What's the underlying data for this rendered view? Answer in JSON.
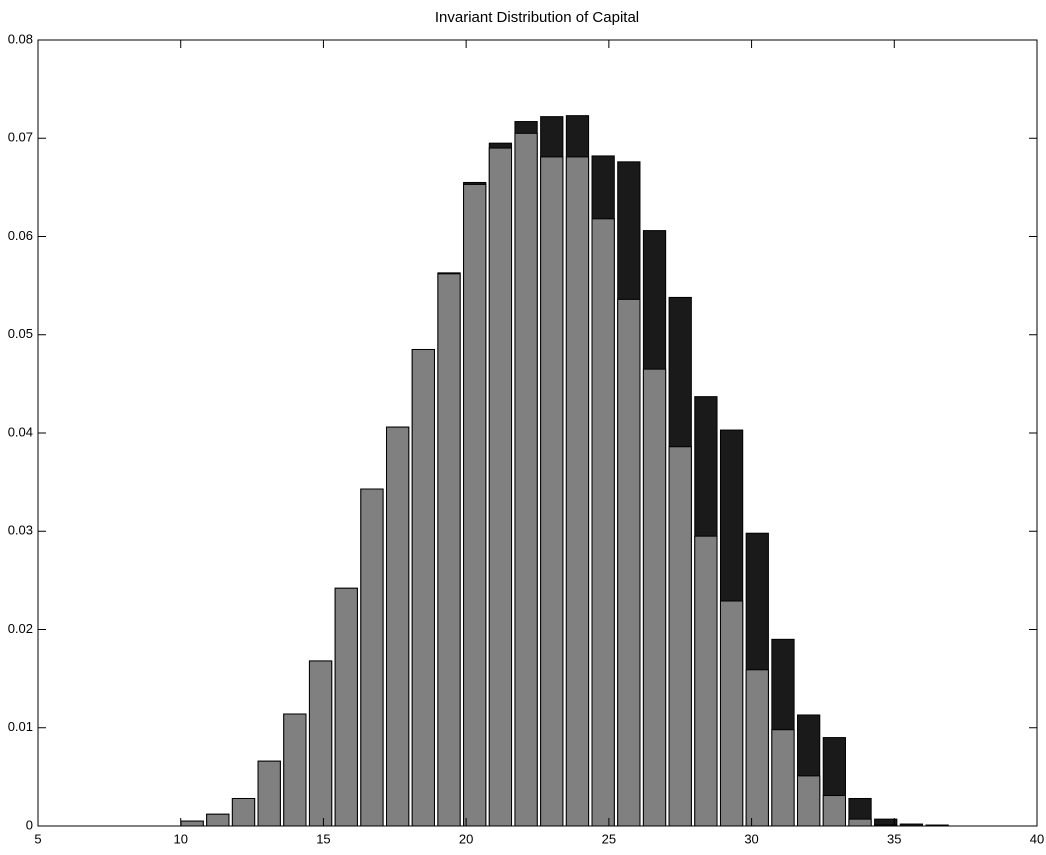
{
  "chart_data": {
    "type": "bar",
    "title": "Invariant Distribution of Capital",
    "x": [
      10.4,
      11.3,
      12.2,
      13.1,
      14.0,
      14.9,
      15.8,
      16.7,
      17.6,
      18.5,
      19.4,
      20.3,
      21.2,
      22.1,
      23.0,
      23.9,
      24.8,
      25.7,
      26.6,
      27.5,
      28.4,
      29.3,
      30.2,
      31.1,
      32.0,
      32.9,
      33.8,
      34.7,
      35.6,
      36.5
    ],
    "series": [
      {
        "color": "#1a1a1a",
        "values": [
          0.0005,
          0.0012,
          0.0028,
          0.0066,
          0.0114,
          0.0168,
          0.0242,
          0.0343,
          0.0406,
          0.0485,
          0.0563,
          0.0655,
          0.0695,
          0.0717,
          0.0722,
          0.0723,
          0.0682,
          0.0676,
          0.0606,
          0.0538,
          0.0437,
          0.0403,
          0.0298,
          0.019,
          0.0113,
          0.009,
          0.0028,
          0.0007,
          0.0002,
          0.0001
        ]
      },
      {
        "color": "#808080",
        "values": [
          0.0005,
          0.0012,
          0.0028,
          0.0066,
          0.0114,
          0.0168,
          0.0242,
          0.0343,
          0.0406,
          0.0485,
          0.0562,
          0.0653,
          0.069,
          0.0705,
          0.0681,
          0.0681,
          0.0618,
          0.0536,
          0.0465,
          0.0386,
          0.0295,
          0.0229,
          0.0159,
          0.0098,
          0.0051,
          0.0031,
          0.0007,
          0.0001,
          0,
          0
        ]
      }
    ],
    "xlim": [
      5,
      40
    ],
    "xticks": [
      5,
      10,
      15,
      20,
      25,
      30,
      35,
      40
    ],
    "ylim": [
      0,
      0.08
    ],
    "yticks": [
      0,
      0.01,
      0.02,
      0.03,
      0.04,
      0.05,
      0.06,
      0.07,
      0.08
    ],
    "grid": false
  }
}
